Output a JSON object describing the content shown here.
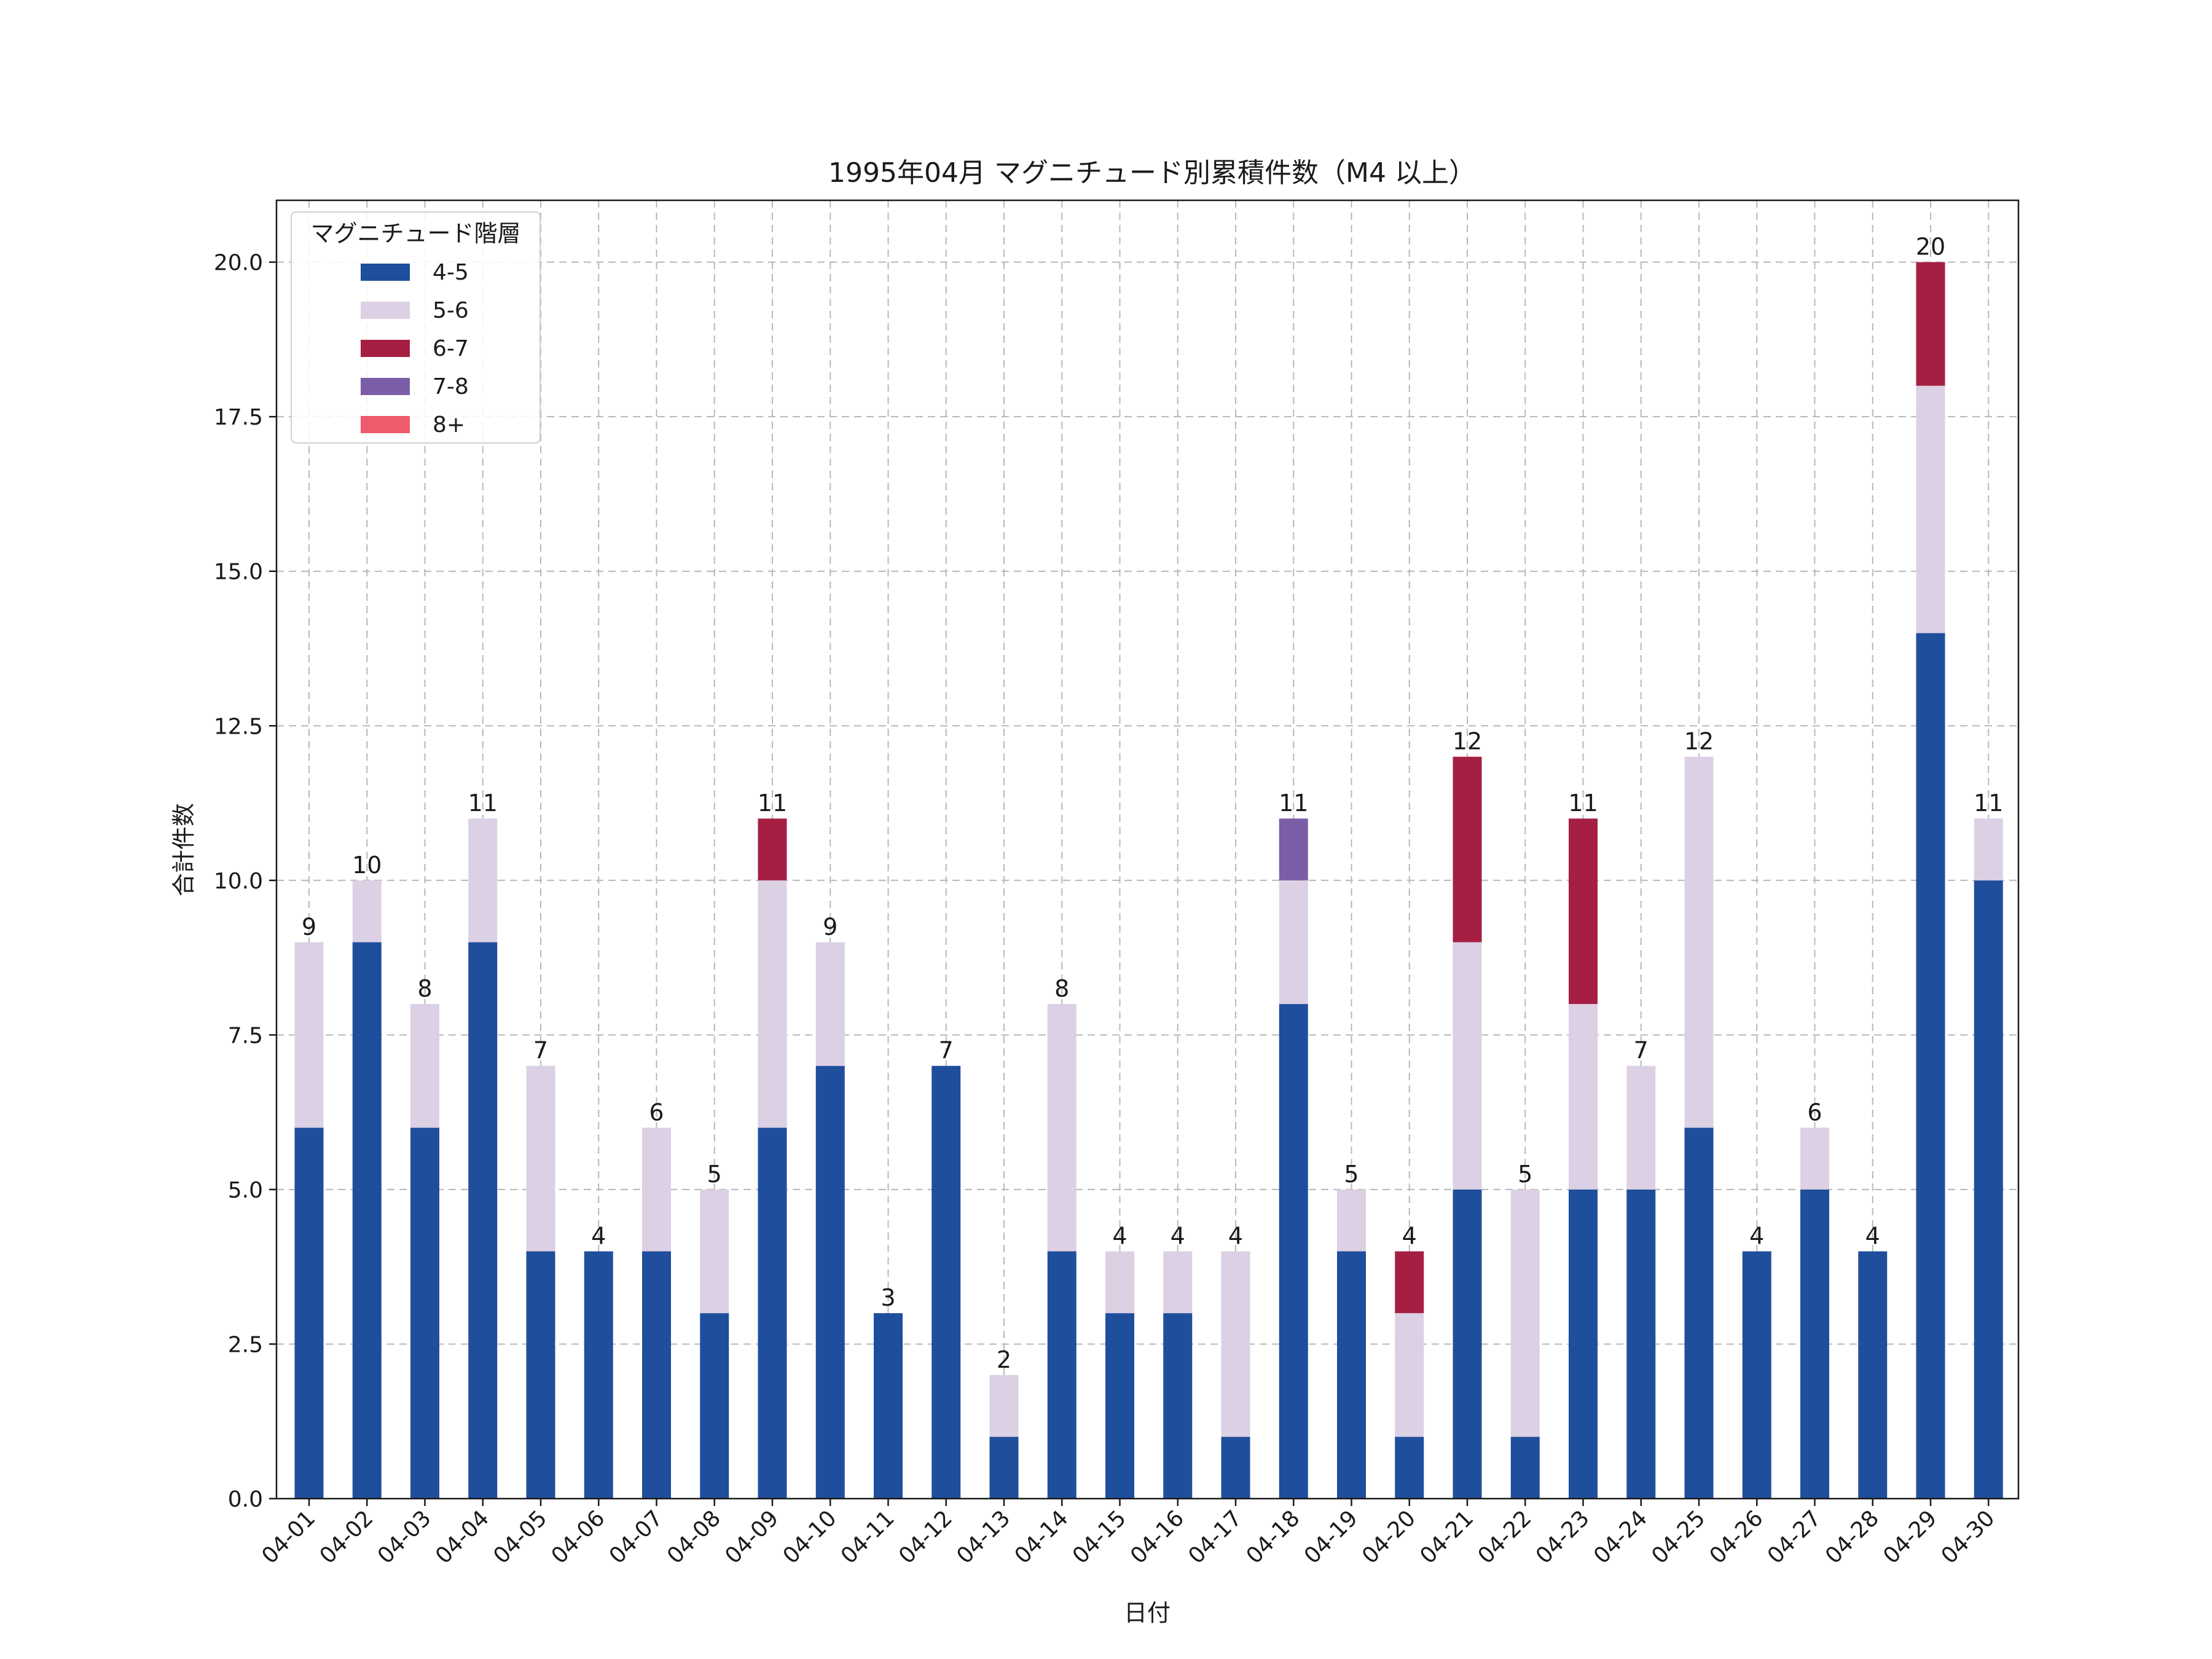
{
  "chart_data": {
    "type": "bar",
    "stacked": true,
    "title": "1995年04月 マグニチュード別累積件数（M4 以上）",
    "xlabel": "日付",
    "ylabel": "合計件数",
    "ylim": [
      0,
      21
    ],
    "yticks": [
      "0.0",
      "2.5",
      "5.0",
      "7.5",
      "10.0",
      "12.5",
      "15.0",
      "17.5",
      "20.0"
    ],
    "grid": true,
    "legend": {
      "title": "マグニチュード階層",
      "position": "top-left"
    },
    "categories": [
      "04-01",
      "04-02",
      "04-03",
      "04-04",
      "04-05",
      "04-06",
      "04-07",
      "04-08",
      "04-09",
      "04-10",
      "04-11",
      "04-12",
      "04-13",
      "04-14",
      "04-15",
      "04-16",
      "04-17",
      "04-18",
      "04-19",
      "04-20",
      "04-21",
      "04-22",
      "04-23",
      "04-24",
      "04-25",
      "04-26",
      "04-27",
      "04-28",
      "04-29",
      "04-30"
    ],
    "series": [
      {
        "name": "4-5",
        "color": "#1f4e9c",
        "values": [
          6,
          9,
          6,
          9,
          4,
          4,
          4,
          3,
          6,
          7,
          3,
          7,
          1,
          4,
          3,
          3,
          1,
          8,
          4,
          1,
          5,
          1,
          5,
          5,
          6,
          4,
          5,
          4,
          14,
          10
        ]
      },
      {
        "name": "5-6",
        "color": "#dcd0e4",
        "values": [
          3,
          1,
          2,
          2,
          3,
          0,
          2,
          2,
          4,
          2,
          0,
          0,
          1,
          4,
          1,
          1,
          3,
          2,
          1,
          2,
          4,
          4,
          3,
          2,
          6,
          0,
          1,
          0,
          4,
          1
        ]
      },
      {
        "name": "6-7",
        "color": "#a51f43",
        "values": [
          0,
          0,
          0,
          0,
          0,
          0,
          0,
          0,
          1,
          0,
          0,
          0,
          0,
          0,
          0,
          0,
          0,
          0,
          0,
          1,
          3,
          0,
          3,
          0,
          0,
          0,
          0,
          0,
          2,
          0
        ]
      },
      {
        "name": "7-8",
        "color": "#7a5ea8",
        "values": [
          0,
          0,
          0,
          0,
          0,
          0,
          0,
          0,
          0,
          0,
          0,
          0,
          0,
          0,
          0,
          0,
          0,
          1,
          0,
          0,
          0,
          0,
          0,
          0,
          0,
          0,
          0,
          0,
          0,
          0
        ]
      },
      {
        "name": "8+",
        "color": "#ee5b6c",
        "values": [
          0,
          0,
          0,
          0,
          0,
          0,
          0,
          0,
          0,
          0,
          0,
          0,
          0,
          0,
          0,
          0,
          0,
          0,
          0,
          0,
          0,
          0,
          0,
          0,
          0,
          0,
          0,
          0,
          0,
          0
        ]
      }
    ],
    "totals": [
      "9",
      "10",
      "8",
      "11",
      "7",
      "4",
      "6",
      "5",
      "11",
      "9",
      "3",
      "7",
      "2",
      "8",
      "4",
      "4",
      "4",
      "11",
      "5",
      "4",
      "12",
      "5",
      "11",
      "7",
      "12",
      "4",
      "6",
      "4",
      "20",
      "11"
    ]
  }
}
